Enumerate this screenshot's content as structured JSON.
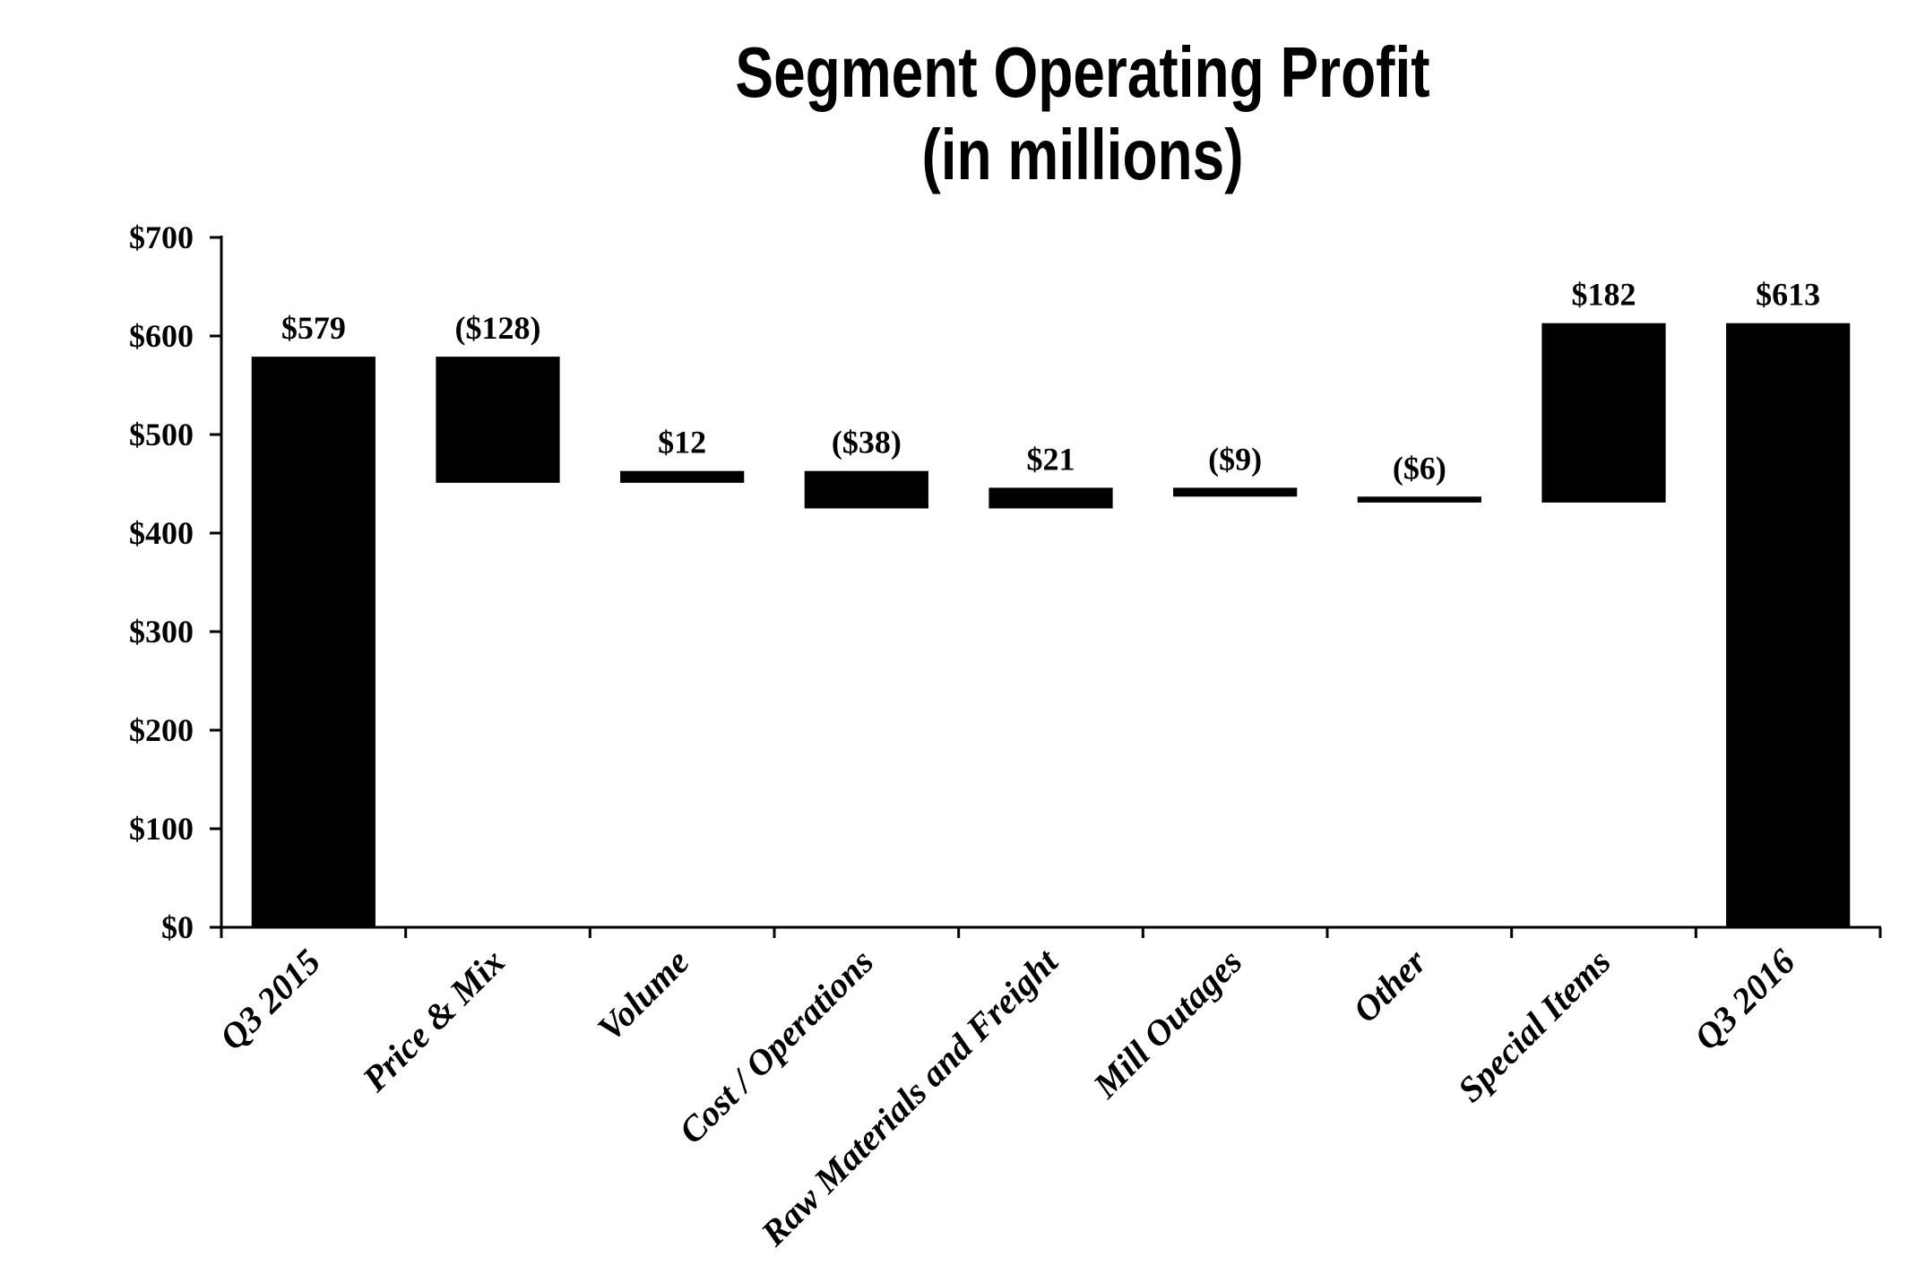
{
  "chart_data": {
    "type": "bar",
    "subtype": "waterfall",
    "title": "Segment Operating Profit",
    "subtitle": "(in millions)",
    "categories": [
      "Q3 2015",
      "Price & Mix",
      "Volume",
      "Cost / Operations",
      "Raw Materials and Freight",
      "Mill Outages",
      "Other",
      "Special Items",
      "Q3 2016"
    ],
    "values": [
      579,
      -128,
      12,
      -38,
      21,
      -9,
      -6,
      182,
      613
    ],
    "bar_kinds": [
      "total",
      "delta",
      "delta",
      "delta",
      "delta",
      "delta",
      "delta",
      "delta",
      "total"
    ],
    "cumulative_ranges": [
      [
        0,
        579
      ],
      [
        451,
        579
      ],
      [
        451,
        463
      ],
      [
        425,
        463
      ],
      [
        425,
        446
      ],
      [
        437,
        446
      ],
      [
        431,
        437
      ],
      [
        431,
        613
      ],
      [
        0,
        613
      ]
    ],
    "data_labels": [
      "$579",
      "($128)",
      "$12",
      "($38)",
      "$21",
      "($9)",
      "($6)",
      "$182",
      "$613"
    ],
    "xlabel": "",
    "ylabel": "",
    "ylim": [
      0,
      700
    ],
    "y_tick_step": 100,
    "y_tick_labels": [
      "$0",
      "$100",
      "$200",
      "$300",
      "$400",
      "$500",
      "$600",
      "$700"
    ],
    "grid": false,
    "legend": false,
    "bar_color": "#000000",
    "axis_color": "#000000",
    "background": "#FFFFFF"
  }
}
